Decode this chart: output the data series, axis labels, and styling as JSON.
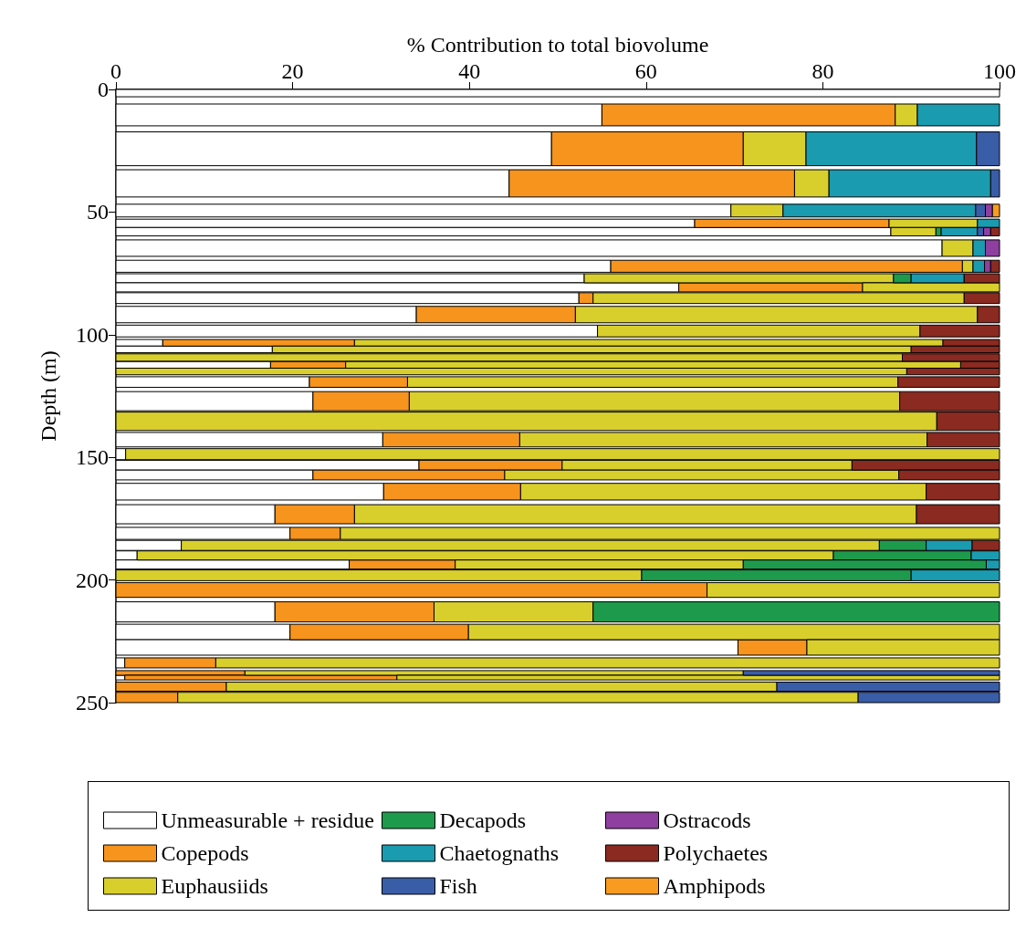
{
  "chart_data": {
    "type": "bar",
    "orientation": "horizontal",
    "stacked": true,
    "xlabel": "% Contribution to total biovolume",
    "ylabel": "Depth (m)",
    "xlim": [
      0,
      100
    ],
    "xticks": [
      0,
      20,
      40,
      60,
      80,
      100
    ],
    "ylim": [
      250,
      0
    ],
    "yticks": [
      0,
      50,
      100,
      150,
      200,
      250
    ],
    "grid": false,
    "legend": "bottom",
    "x": [
      1.5,
      10.4,
      24.2,
      38.3,
      49.4,
      54.6,
      58,
      64.7,
      72.1,
      77,
      80.7,
      85.1,
      91.8,
      98.5,
      103.3,
      106,
      109.3,
      112.3,
      115,
      119.3,
      127.1,
      135.3,
      142.8,
      148.7,
      153.2,
      157.2,
      164,
      173.2,
      181,
      185.9,
      190,
      193.7,
      198.1,
      204.1,
      213,
      221.2,
      227.5,
      233.8,
      237.9,
      239.8,
      243.5,
      247.9
    ],
    "series": [
      {
        "name": "Unmeasurable + residue",
        "color": "#ffffff",
        "values": [
          100,
          55,
          49.3,
          44.5,
          69.6,
          65.5,
          87.7,
          93.5,
          56,
          53,
          63.7,
          52.4,
          34,
          54.5,
          5.3,
          17.7,
          0,
          17.5,
          0,
          21.9,
          22.3,
          0,
          30.2,
          1.1,
          34.3,
          22.3,
          30.3,
          18,
          19.7,
          7.4,
          2.4,
          26.4,
          0,
          0,
          18,
          19.7,
          70.4,
          1,
          0,
          1,
          0,
          0
        ]
      },
      {
        "name": "Copepods",
        "color": "#f7941d",
        "values": [
          0,
          33.2,
          21.7,
          32.3,
          0,
          22,
          0,
          0,
          39.8,
          0,
          20.8,
          1.6,
          18,
          0,
          21.7,
          0,
          0,
          8.5,
          0,
          11.1,
          10.9,
          0,
          15.5,
          0,
          16.2,
          21.7,
          15.5,
          9,
          5.7,
          0,
          0,
          12,
          0,
          66.9,
          18,
          20.2,
          7.8,
          10.3,
          14.6,
          30.8,
          12.5,
          7
        ]
      },
      {
        "name": "Euphausiids",
        "color": "#d9cf2c",
        "values": [
          0,
          2.5,
          7.1,
          3.9,
          5.9,
          10,
          5.1,
          3.5,
          1.2,
          35,
          15.5,
          42,
          45.5,
          36.5,
          66.6,
          72.3,
          89,
          69.6,
          89.5,
          55.5,
          55.5,
          92.9,
          46.1,
          98.9,
          32.8,
          44.6,
          45.9,
          63.6,
          74.6,
          79,
          78.8,
          32.6,
          59.5,
          33.1,
          18,
          60.1,
          21.8,
          88.7,
          56.4,
          68.2,
          62.3,
          77
        ]
      },
      {
        "name": "Decapods",
        "color": "#1e9a4c",
        "values": [
          0,
          0,
          0,
          0,
          0,
          0,
          0.6,
          0,
          0,
          2,
          0,
          0,
          0,
          0,
          0,
          0,
          0,
          0,
          0,
          0,
          0,
          0,
          0,
          0,
          0,
          0,
          0,
          0,
          0,
          5.3,
          15.6,
          27.5,
          30.5,
          0,
          46,
          0,
          0,
          0,
          0,
          0,
          0,
          0
        ]
      },
      {
        "name": "Chaetognaths",
        "color": "#1a9bb0",
        "values": [
          0,
          9.3,
          19.3,
          18.3,
          21.8,
          2.5,
          4.1,
          1.4,
          1.3,
          6,
          0,
          0,
          0,
          0,
          0,
          0,
          0,
          0,
          0,
          0,
          0,
          0,
          0,
          0,
          0,
          0,
          0,
          0,
          0,
          5.2,
          3.2,
          1.5,
          10,
          0,
          0,
          0,
          0,
          0,
          0,
          0,
          0,
          0
        ]
      },
      {
        "name": "Fish",
        "color": "#3a5da8",
        "values": [
          0,
          0,
          2.6,
          1,
          1.1,
          0,
          0.7,
          0,
          0,
          0,
          0,
          0,
          0,
          0,
          0,
          0,
          0,
          0,
          0,
          0,
          0,
          0,
          0,
          0,
          0,
          0,
          0,
          0,
          0,
          0,
          0,
          0,
          0,
          0,
          0,
          0,
          0,
          0,
          29,
          0,
          25.2,
          16
        ]
      },
      {
        "name": "Ostracods",
        "color": "#8e3fa0",
        "values": [
          0,
          0,
          0,
          0,
          0.8,
          0,
          0.8,
          1.6,
          0.7,
          0,
          0,
          0,
          0,
          0,
          0,
          0,
          0,
          0,
          0,
          0,
          0,
          0,
          0,
          0,
          0,
          0,
          0,
          0,
          0,
          0,
          0,
          0,
          0,
          0,
          0,
          0,
          0,
          0,
          0,
          0,
          0,
          0
        ]
      },
      {
        "name": "Polychaetes",
        "color": "#8b2a20",
        "values": [
          0,
          0,
          0,
          0,
          0,
          0,
          1,
          0,
          1,
          4,
          0,
          4,
          2.5,
          9,
          6.4,
          10,
          11,
          4.4,
          10.5,
          11.5,
          11.3,
          7.1,
          8.2,
          0,
          16.7,
          11.4,
          8.3,
          9.4,
          0,
          3.1,
          0,
          0,
          0,
          0,
          0,
          0,
          0,
          0,
          0,
          0,
          0,
          0
        ]
      },
      {
        "name": "Amphipods",
        "color": "#f99b20",
        "values": [
          0,
          0,
          0,
          0,
          0.8,
          0,
          0,
          0,
          0,
          0,
          0,
          0,
          0,
          0,
          0,
          0,
          0,
          0,
          0,
          0,
          0,
          0,
          0,
          0,
          0,
          0,
          0,
          0,
          0,
          0,
          0,
          0,
          0,
          0,
          0,
          0,
          0,
          0,
          0,
          0,
          0,
          0
        ]
      }
    ]
  }
}
